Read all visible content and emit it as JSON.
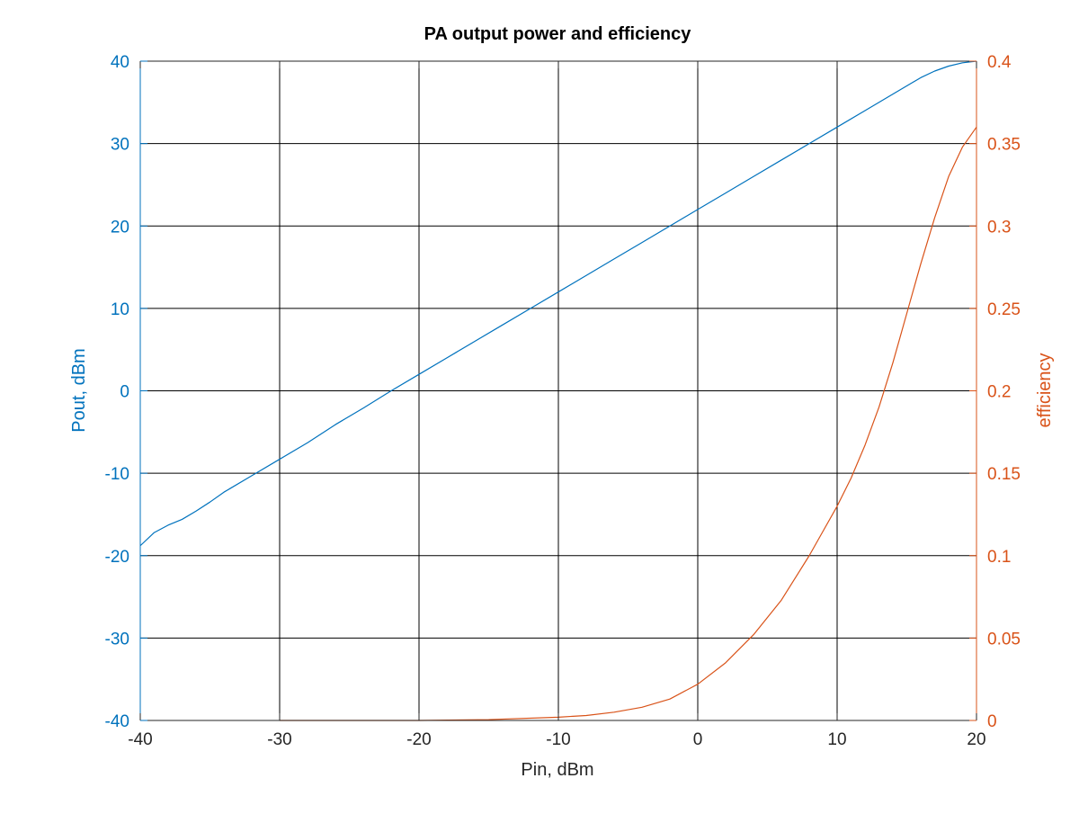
{
  "chart_data": {
    "type": "line",
    "title": "PA output power and efficiency",
    "xlabel": "Pin, dBm",
    "ylabel_left": "Pout, dBm",
    "ylabel_right": "efficiency",
    "xlim": [
      -40,
      20
    ],
    "ylim_left": [
      -40,
      40
    ],
    "ylim_right": [
      0,
      0.4
    ],
    "x_ticks": [
      -40,
      -30,
      -20,
      -10,
      0,
      10,
      20
    ],
    "y_ticks_left": [
      -40,
      -30,
      -20,
      -10,
      0,
      10,
      20,
      30,
      40
    ],
    "y_ticks_right": [
      0,
      0.05,
      0.1,
      0.15,
      0.2,
      0.25,
      0.3,
      0.35,
      0.4
    ],
    "grid": true,
    "colors": {
      "left_axis": "#0072bd",
      "right_axis": "#d95319",
      "grid": "#000000"
    },
    "series": [
      {
        "axis": "left",
        "color": "#0072bd",
        "x": [
          -40,
          -39,
          -38,
          -37,
          -36,
          -35,
          -34,
          -32,
          -30,
          -28,
          -26,
          -24,
          -22,
          -20,
          -18,
          -16,
          -14,
          -12,
          -10,
          -8,
          -6,
          -4,
          -2,
          0,
          2,
          4,
          6,
          8,
          10,
          12,
          14,
          16,
          17,
          18,
          19,
          20
        ],
        "values": [
          -18.8,
          -17.2,
          -16.3,
          -15.6,
          -14.6,
          -13.5,
          -12.3,
          -10.3,
          -8.3,
          -6.3,
          -4.1,
          -2.1,
          0,
          2.0,
          4.0,
          6.0,
          8.0,
          10.0,
          12.0,
          14.0,
          16.0,
          18.0,
          20.0,
          22.0,
          24.0,
          26.0,
          28.0,
          30.0,
          32.0,
          34.0,
          36.0,
          38.0,
          38.8,
          39.4,
          39.8,
          40.0
        ]
      },
      {
        "axis": "right",
        "color": "#d95319",
        "x": [
          -30,
          -25,
          -20,
          -15,
          -10,
          -8,
          -6,
          -4,
          -2,
          0,
          2,
          4,
          6,
          8,
          9,
          10,
          11,
          12,
          13,
          14,
          15,
          16,
          17,
          18,
          19,
          20
        ],
        "values": [
          0,
          0,
          0,
          0.0005,
          0.002,
          0.003,
          0.005,
          0.008,
          0.013,
          0.022,
          0.035,
          0.052,
          0.073,
          0.1,
          0.115,
          0.13,
          0.147,
          0.167,
          0.19,
          0.217,
          0.247,
          0.277,
          0.305,
          0.33,
          0.348,
          0.36
        ]
      }
    ]
  }
}
